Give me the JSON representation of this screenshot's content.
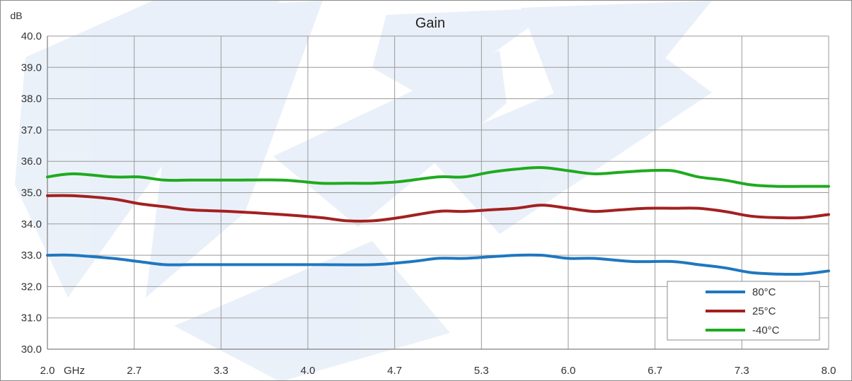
{
  "chart_data": {
    "type": "line",
    "title": "Gain",
    "ylabel": "dB",
    "xlabel": "GHz",
    "xlim": [
      2.0,
      8.0
    ],
    "ylim": [
      30.0,
      40.0
    ],
    "x_ticks": [
      "2.0",
      "2.7",
      "3.3",
      "4.0",
      "4.7",
      "5.3",
      "6.0",
      "6.7",
      "7.3",
      "8.0"
    ],
    "y_ticks": [
      "30.0",
      "31.0",
      "32.0",
      "33.0",
      "34.0",
      "35.0",
      "36.0",
      "37.0",
      "38.0",
      "39.0",
      "40.0"
    ],
    "grid": true,
    "legend_position": "bottom-right",
    "series": [
      {
        "name": "80°C",
        "color": "#1f77c0",
        "x": [
          2.0,
          2.2,
          2.5,
          2.7,
          2.9,
          3.1,
          3.4,
          3.8,
          4.1,
          4.5,
          4.8,
          5.0,
          5.2,
          5.4,
          5.6,
          5.8,
          6.0,
          6.2,
          6.5,
          6.8,
          7.0,
          7.2,
          7.4,
          7.6,
          7.8,
          8.0
        ],
        "values": [
          33.0,
          33.0,
          32.9,
          32.8,
          32.7,
          32.7,
          32.7,
          32.7,
          32.7,
          32.7,
          32.8,
          32.9,
          32.9,
          32.95,
          33.0,
          33.0,
          32.9,
          32.9,
          32.8,
          32.8,
          32.7,
          32.6,
          32.45,
          32.4,
          32.4,
          32.5
        ]
      },
      {
        "name": "25°C",
        "color": "#a32020",
        "x": [
          2.0,
          2.2,
          2.5,
          2.7,
          2.9,
          3.1,
          3.4,
          3.8,
          4.1,
          4.3,
          4.5,
          4.7,
          5.0,
          5.2,
          5.4,
          5.6,
          5.8,
          6.0,
          6.2,
          6.4,
          6.6,
          6.8,
          7.0,
          7.2,
          7.4,
          7.6,
          7.8,
          8.0
        ],
        "values": [
          34.9,
          34.9,
          34.8,
          34.65,
          34.55,
          34.45,
          34.4,
          34.3,
          34.2,
          34.1,
          34.1,
          34.2,
          34.4,
          34.4,
          34.45,
          34.5,
          34.6,
          34.5,
          34.4,
          34.45,
          34.5,
          34.5,
          34.5,
          34.4,
          34.25,
          34.2,
          34.2,
          34.3
        ]
      },
      {
        "name": "-40°C",
        "color": "#1faa1f",
        "x": [
          2.0,
          2.2,
          2.5,
          2.7,
          2.9,
          3.1,
          3.4,
          3.8,
          4.1,
          4.3,
          4.5,
          4.7,
          5.0,
          5.2,
          5.4,
          5.6,
          5.8,
          6.0,
          6.2,
          6.4,
          6.6,
          6.8,
          7.0,
          7.2,
          7.4,
          7.6,
          7.8,
          8.0
        ],
        "values": [
          35.5,
          35.6,
          35.5,
          35.5,
          35.4,
          35.4,
          35.4,
          35.4,
          35.3,
          35.3,
          35.3,
          35.35,
          35.5,
          35.5,
          35.65,
          35.75,
          35.8,
          35.7,
          35.6,
          35.65,
          35.7,
          35.7,
          35.5,
          35.4,
          35.25,
          35.2,
          35.2,
          35.2
        ]
      }
    ]
  }
}
